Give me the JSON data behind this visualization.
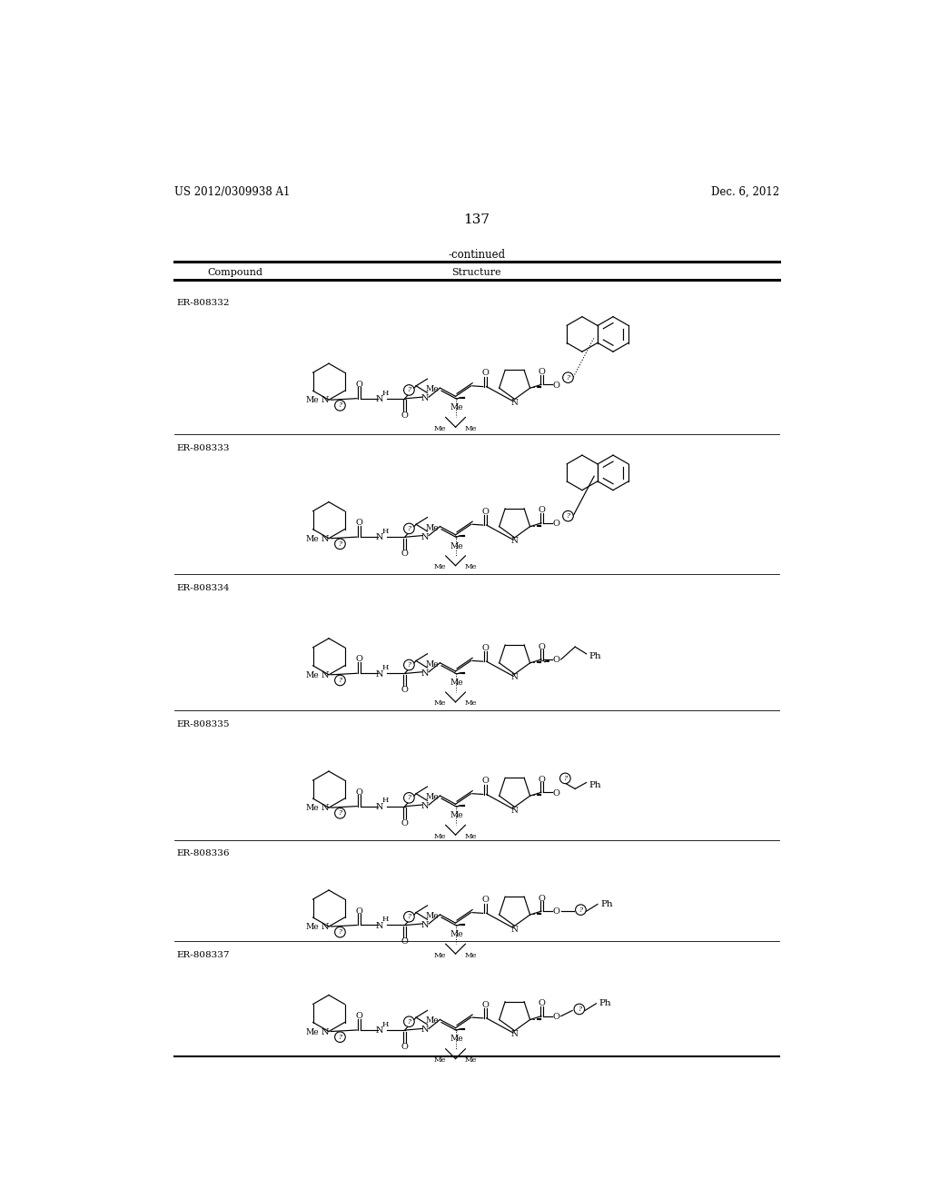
{
  "page_header_left": "US 2012/0309938 A1",
  "page_header_right": "Dec. 6, 2012",
  "page_number": "137",
  "table_header": "-continued",
  "col1_header": "Compound",
  "col2_header": "Structure",
  "compounds": [
    "ER-808332",
    "ER-808333",
    "ER-808334",
    "ER-808335",
    "ER-808336",
    "ER-808337"
  ],
  "background_color": "#ffffff",
  "text_color": "#000000",
  "row_tops": [
    208,
    415,
    615,
    810,
    995,
    1140
  ],
  "row_bottoms": [
    415,
    615,
    810,
    995,
    1140,
    1300
  ]
}
